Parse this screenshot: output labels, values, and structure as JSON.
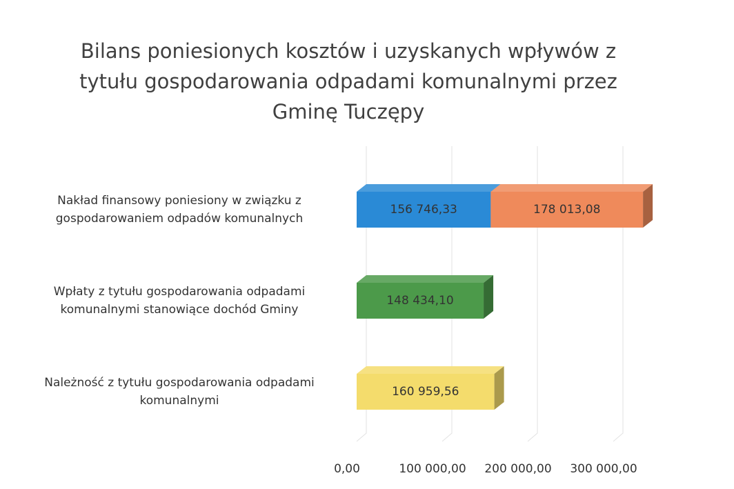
{
  "chart_data": {
    "type": "bar3d_stacked_horizontal",
    "title": "Bilans poniesionych kosztów i uzyskanych wpływów z tytułu gospodarowania odpadami komunalnymi przez Gminę Tuczępy",
    "categories": [
      "Nakład finansowy poniesiony w związku z gospodarowaniem odpadów komunalnych",
      "Wpłaty z tytułu gospodarowania odpadami komunalnymi stanowiące dochód Gminy",
      "Należność z tytułu gospodarowania odpadami komunalnymi"
    ],
    "series": [
      {
        "color": "#2a8ad6",
        "values": [
          156746.33,
          null,
          null
        ],
        "value_labels": [
          "156 746,33",
          null,
          null
        ]
      },
      {
        "color": "#ef8a5b",
        "values": [
          178013.08,
          null,
          null
        ],
        "value_labels": [
          "178 013,08",
          null,
          null
        ]
      },
      {
        "color": "#4c9a4a",
        "values": [
          null,
          148434.1,
          null
        ],
        "value_labels": [
          null,
          "148 434,10",
          null
        ]
      },
      {
        "color": "#f4dc6c",
        "values": [
          null,
          null,
          160959.56
        ],
        "value_labels": [
          null,
          null,
          "160 959,56"
        ]
      }
    ],
    "xlim": [
      0,
      350000
    ],
    "xticks": [
      {
        "value": 0,
        "label": "0,00"
      },
      {
        "value": 100000,
        "label": "100 000,00"
      },
      {
        "value": 200000,
        "label": "200 000,00"
      },
      {
        "value": 300000,
        "label": "300 000,00"
      }
    ],
    "grid": true
  }
}
